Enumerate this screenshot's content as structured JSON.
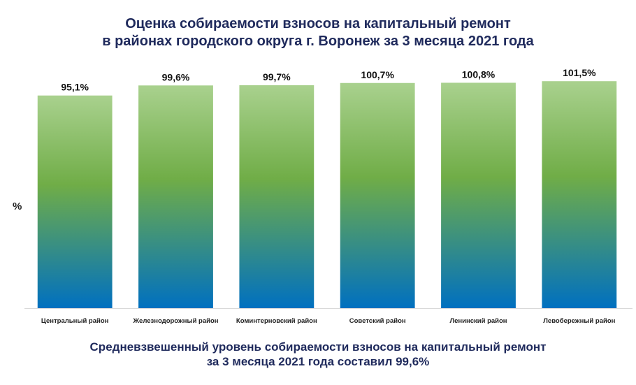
{
  "chart_data": {
    "type": "bar",
    "title": [
      "Оценка собираемости взносов на капитальный ремонт",
      "в районах городского округа г. Воронеж за 3 месяца 2021 года"
    ],
    "ylabel": "%",
    "xlabel": "",
    "categories": [
      "Центральный район",
      "Железнодорожный район",
      "Коминтерновский район",
      "Советский район",
      "Ленинский район",
      "Левобережный район"
    ],
    "values": [
      95.1,
      99.6,
      99.7,
      100.7,
      100.8,
      101.5
    ],
    "data_labels": [
      "95,1%",
      "99,6%",
      "99,7%",
      "100,7%",
      "100,8%",
      "101,5%"
    ],
    "ylim": [
      0,
      110
    ],
    "grid": false,
    "legend": "none",
    "colors": {
      "bar_top": "#a9d18e",
      "bar_middle": "#70ad47",
      "bar_bottom": "#0070c0",
      "title": "#1f2a5c"
    }
  },
  "footer": [
    "Средневзвешенный уровень собираемости взносов на капитальный ремонт",
    "за 3 месяца 2021 года составил 99,6%"
  ]
}
